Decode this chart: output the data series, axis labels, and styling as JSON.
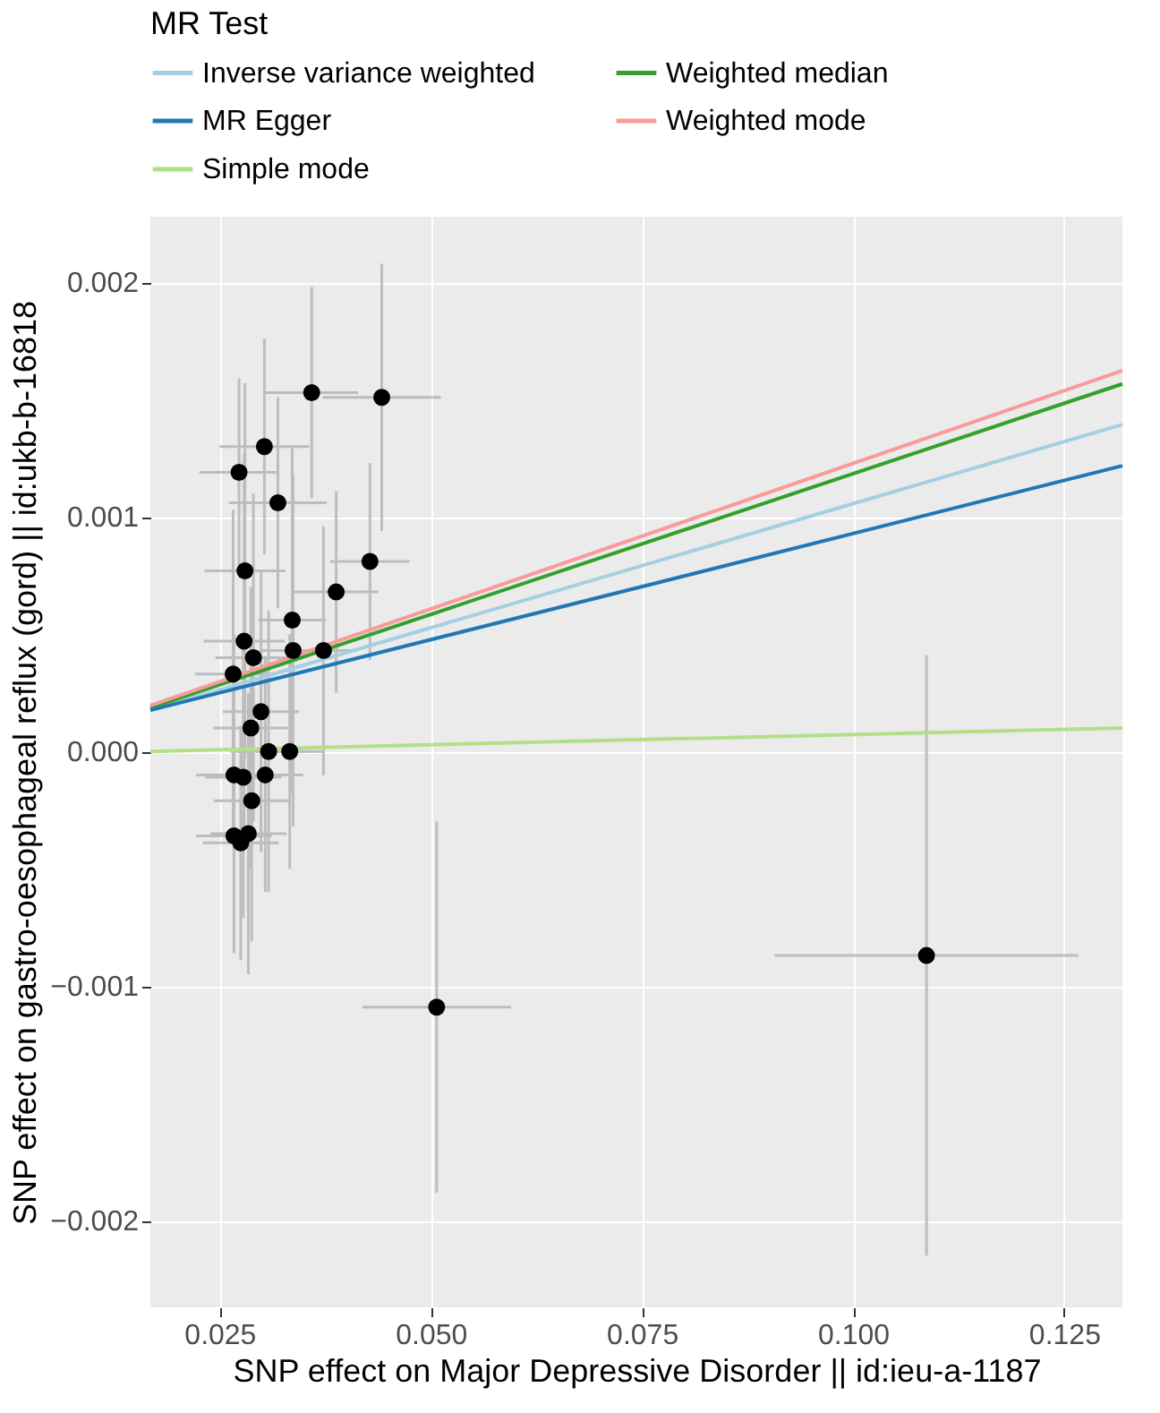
{
  "chart_data": {
    "type": "scatter",
    "xlabel": "SNP effect on Major Depressive Disorder || id:ieu-a-1187",
    "ylabel": "SNP effect on gastro-oesophageal reflux (gord) || id:ukb-b-16818",
    "legend_title": "MR Test",
    "legend": "top",
    "grid": true,
    "xlim": [
      0.0168,
      0.1319
    ],
    "ylim": [
      -0.00237,
      0.00228
    ],
    "xticks": [
      0.025,
      {
        "value": 0.05,
        "label": "0.050"
      },
      0.075,
      {
        "value": 0.1,
        "label": "0.100"
      },
      0.125
    ],
    "yticks": [
      -0.002,
      -0.001,
      {
        "value": 0,
        "label": "0.000"
      },
      0.001,
      0.002
    ],
    "series": [
      {
        "marker": "circle",
        "color": "#000000",
        "x": [
          0.0359,
          0.0442,
          0.0303,
          0.0273,
          0.0319,
          0.0428,
          0.0388,
          0.028,
          0.0336,
          0.0337,
          0.0373,
          0.0279,
          0.029,
          0.0266,
          0.0299,
          0.0287,
          0.0308,
          0.0333,
          0.0267,
          0.0278,
          0.0304,
          0.0288,
          0.0267,
          0.0284,
          0.0275,
          0.0507,
          0.1087
        ],
        "values": [
          0.00153,
          0.00151,
          0.0013,
          0.00119,
          0.00106,
          0.00081,
          0.00068,
          0.00077,
          0.00056,
          0.00043,
          0.00043,
          0.00047,
          0.0004,
          0.00033,
          0.00017,
          0.0001,
          0.0,
          0.0,
          -0.0001,
          -0.00011,
          -0.0001,
          -0.00021,
          -0.00036,
          -0.00035,
          -0.00039,
          -0.00109,
          -0.00087
        ],
        "errors": [
          0.00045,
          0.00057,
          0.00046,
          0.0004,
          0.00045,
          0.00042,
          0.00043,
          0.0008,
          0.00074,
          0.00075,
          0.00053,
          0.0008,
          0.0007,
          0.0007,
          0.0006,
          0.0006,
          0.0006,
          0.0005,
          0.0006,
          0.0006,
          0.0005,
          0.0006,
          0.0005,
          0.0006,
          0.0005,
          0.00079,
          0.00128
        ],
        "xerrors": [
          0.0055,
          0.007,
          0.0053,
          0.0047,
          0.0058,
          0.0047,
          0.005,
          0.0048,
          0.004,
          0.004,
          0.004,
          0.0048,
          0.0045,
          0.0045,
          0.0045,
          0.0045,
          0.0045,
          0.004,
          0.0045,
          0.0045,
          0.0045,
          0.0045,
          0.0045,
          0.0045,
          0.0045,
          0.0088,
          0.018
        ]
      },
      {
        "type": "line",
        "name": "Inverse variance weighted",
        "color": "#a6cee3",
        "x": [
          0.0168,
          0.1319
        ],
        "values": [
          0.000176,
          0.001394
        ]
      },
      {
        "type": "line",
        "name": "Weighted median",
        "color": "#33a02c",
        "x": [
          0.0168,
          0.1319
        ],
        "values": [
          0.000186,
          0.001567
        ]
      },
      {
        "type": "line",
        "name": "MR Egger",
        "color": "#1f78b4",
        "x": [
          0.0168,
          0.1319
        ],
        "values": [
          0.000176,
          0.001218
        ]
      },
      {
        "type": "line",
        "name": "Weighted mode",
        "color": "#fb9a99",
        "x": [
          0.0168,
          0.1319
        ],
        "values": [
          0.000196,
          0.001624
        ]
      },
      {
        "type": "line",
        "name": "Simple mode",
        "color": "#b2df8a",
        "x": [
          0.0168,
          0.1319
        ],
        "values": [
          0.0,
          0.0001
        ]
      }
    ]
  }
}
